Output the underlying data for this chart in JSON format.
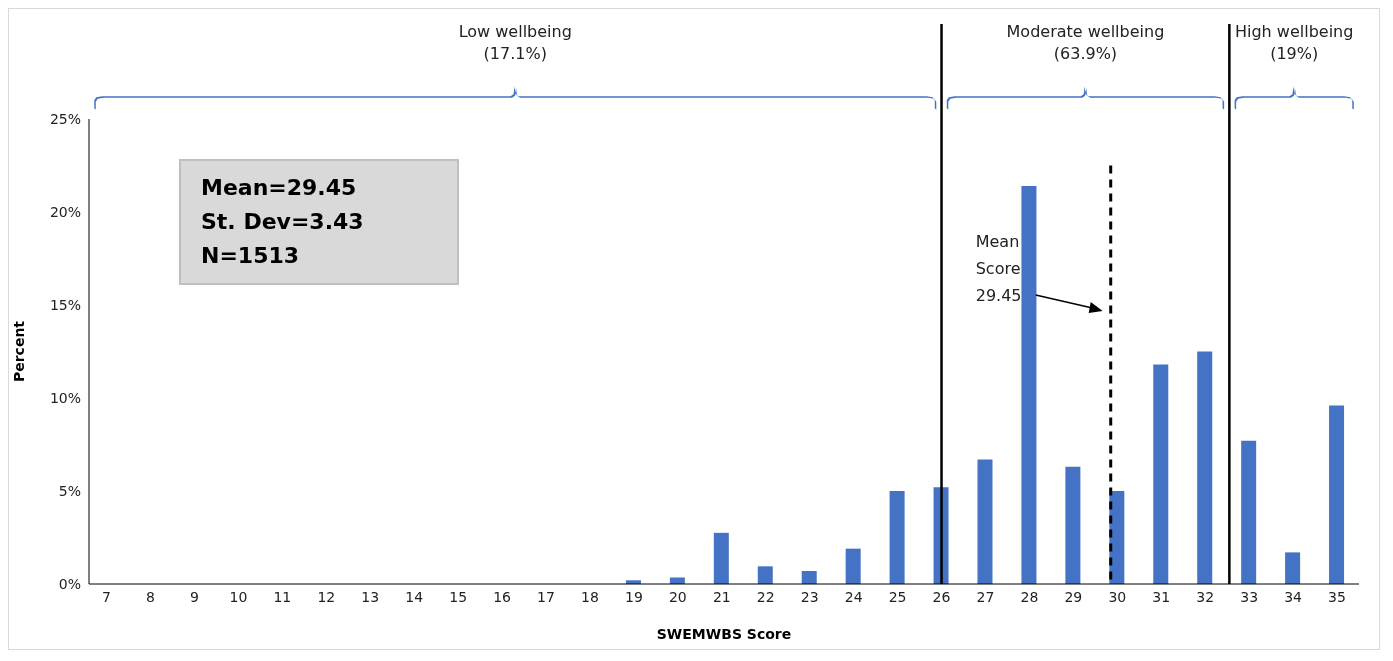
{
  "chart_data": {
    "type": "bar",
    "xlabel": "SWEMWBS Score",
    "ylabel": "Percent",
    "x": [
      7,
      8,
      9,
      10,
      11,
      12,
      13,
      14,
      15,
      16,
      17,
      18,
      19,
      20,
      21,
      22,
      23,
      24,
      25,
      26,
      27,
      28,
      29,
      30,
      31,
      32,
      33,
      34,
      35
    ],
    "values": [
      0,
      0,
      0,
      0,
      0,
      0,
      0,
      0,
      0,
      0,
      0,
      0,
      0.2,
      0.35,
      2.75,
      0.95,
      0.7,
      1.9,
      5.0,
      5.2,
      6.7,
      21.4,
      6.3,
      5.0,
      11.8,
      12.5,
      7.7,
      1.7,
      9.6
    ],
    "color": "#4472c4",
    "xlim": [
      6.6,
      35.5
    ],
    "xticks": [
      7,
      8,
      9,
      10,
      11,
      12,
      13,
      14,
      15,
      16,
      17,
      18,
      19,
      20,
      21,
      22,
      23,
      24,
      25,
      26,
      27,
      28,
      29,
      30,
      31,
      32,
      33,
      34,
      35
    ],
    "ylim": [
      0,
      25
    ],
    "yticks": [
      {
        "value": 0,
        "label": "0%"
      },
      {
        "value": 5,
        "label": "5%"
      },
      {
        "value": 10,
        "label": "10%"
      },
      {
        "value": 15,
        "label": "15%"
      },
      {
        "value": 20,
        "label": "20%"
      },
      {
        "value": 25,
        "label": "25%"
      }
    ],
    "grid": false,
    "ref_lines": [
      {
        "axis": "x",
        "value": 26,
        "color": "#000000",
        "line_style": "solid"
      },
      {
        "axis": "x",
        "value": 32.55,
        "color": "#000000",
        "line_style": "solid"
      },
      {
        "axis": "x",
        "value": 29.85,
        "color": "#000000",
        "line_style": "dashed",
        "label": "Mean\nScore\n29.45"
      }
    ],
    "annotations": [
      "Low wellbeing\n(17.1%)",
      "Moderate wellbeing\n(63.9%)",
      "High wellbeing\n(19%)",
      "Mean=29.45\nSt. Dev=3.43\nN=1513"
    ]
  }
}
